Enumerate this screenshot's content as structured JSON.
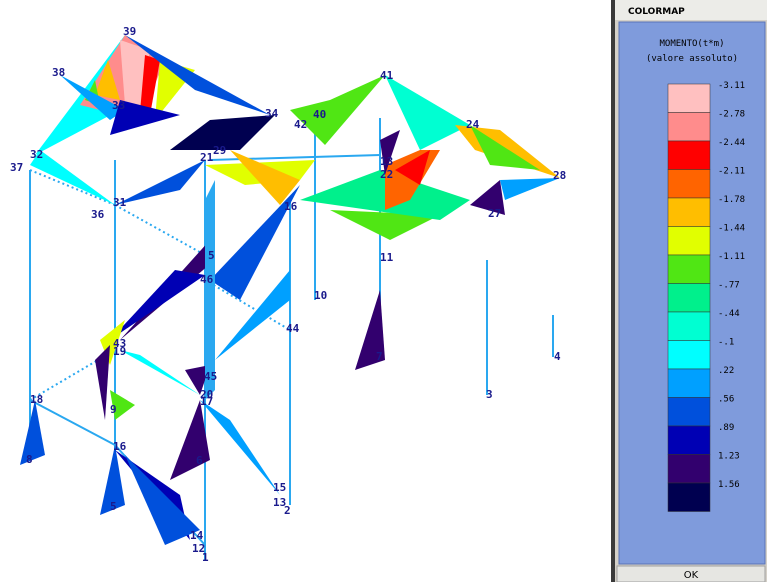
{
  "viewport": {
    "nodes": [
      {
        "label": "39"
      },
      {
        "label": "38"
      },
      {
        "label": "33"
      },
      {
        "label": "37"
      },
      {
        "label": "32"
      },
      {
        "label": "34"
      },
      {
        "label": "42"
      },
      {
        "label": "40"
      },
      {
        "label": "41"
      },
      {
        "label": "24"
      },
      {
        "label": "29"
      },
      {
        "label": "21"
      },
      {
        "label": "13"
      },
      {
        "label": "22"
      },
      {
        "label": "28"
      },
      {
        "label": "36"
      },
      {
        "label": "31"
      },
      {
        "label": "16"
      },
      {
        "label": "27"
      },
      {
        "label": "5"
      },
      {
        "label": "11"
      },
      {
        "label": "46"
      },
      {
        "label": "10"
      },
      {
        "label": "44"
      },
      {
        "label": "43"
      },
      {
        "label": "19"
      },
      {
        "label": "4"
      },
      {
        "label": "7"
      },
      {
        "label": "45"
      },
      {
        "label": "3"
      },
      {
        "label": "18"
      },
      {
        "label": "20"
      },
      {
        "label": "17"
      },
      {
        "label": "9"
      },
      {
        "label": "16"
      },
      {
        "label": "8"
      },
      {
        "label": "6"
      },
      {
        "label": "15"
      },
      {
        "label": "13"
      },
      {
        "label": "2"
      },
      {
        "label": "5"
      },
      {
        "label": "14"
      },
      {
        "label": "12"
      },
      {
        "label": "1"
      }
    ]
  },
  "panel": {
    "title": "COLORMAP",
    "heading": "MOMENTO(t*m)",
    "subheading": "(valore assoluto)",
    "legend": [
      {
        "label": "-3.11",
        "color": "#ffc0c0"
      },
      {
        "label": "-2.78",
        "color": "#ff8c8c"
      },
      {
        "label": "-2.44",
        "color": "#ff0000"
      },
      {
        "label": "-2.11",
        "color": "#ff6400"
      },
      {
        "label": "-1.78",
        "color": "#ffbe00"
      },
      {
        "label": "-1.44",
        "color": "#e1ff00"
      },
      {
        "label": "-1.11",
        "color": "#50e614"
      },
      {
        "label": "-.77",
        "color": "#00f08c"
      },
      {
        "label": "-.44",
        "color": "#00ffd2"
      },
      {
        "label": "-.1",
        "color": "#00ffff"
      },
      {
        "label": ".22",
        "color": "#00a0ff"
      },
      {
        "label": ".56",
        "color": "#0050dc"
      },
      {
        "label": ".89",
        "color": "#0000b4"
      },
      {
        "label": "1.23",
        "color": "#32006e"
      },
      {
        "label": "1.56",
        "color": "#000050"
      }
    ],
    "button": "OK"
  }
}
